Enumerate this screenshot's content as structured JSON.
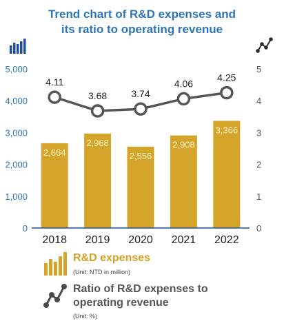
{
  "title_line1": "Trend chart of R&D expenses and",
  "title_line2": "its ratio to operating revenue",
  "chart_data": {
    "type": "bar",
    "categories": [
      "2018",
      "2019",
      "2020",
      "2021",
      "2022"
    ],
    "series": [
      {
        "name": "R&D expenses",
        "type": "bar",
        "axis": "left",
        "values": [
          2664,
          2968,
          2556,
          2908,
          3366
        ],
        "labels": [
          "2,664",
          "2,968",
          "2,556",
          "2,908",
          "3,366"
        ],
        "color": "#d4a52a"
      },
      {
        "name": "Ratio of R&D expenses to operating revenue",
        "type": "line",
        "axis": "right",
        "values": [
          4.11,
          3.68,
          3.74,
          4.06,
          4.25
        ],
        "labels": [
          "4.11",
          "3.68",
          "3.74",
          "4.06",
          "4.25"
        ],
        "color": "#555555"
      }
    ],
    "left_axis": {
      "ticks": [
        "0",
        "1,000",
        "2,000",
        "3,000",
        "4,000",
        "5,000"
      ],
      "ylim": [
        0,
        5000
      ],
      "color": "#2e75b6"
    },
    "right_axis": {
      "ticks": [
        "0",
        "1",
        "2",
        "3",
        "4",
        "5"
      ],
      "ylim": [
        0,
        5
      ],
      "color": "#555555"
    }
  },
  "legend": {
    "rd_label": "R&D expenses",
    "rd_unit": "(Unit: NTD in million)",
    "ratio_label_line1": "Ratio of R&D expenses to",
    "ratio_label_line2": "operating revenue",
    "ratio_unit": "(Unit: %)"
  },
  "colors": {
    "title": "#2e75b6",
    "bar": "#d4a52a",
    "bar_label": "#e0b040",
    "line": "#555555",
    "left_axis": "#2e75b6"
  }
}
